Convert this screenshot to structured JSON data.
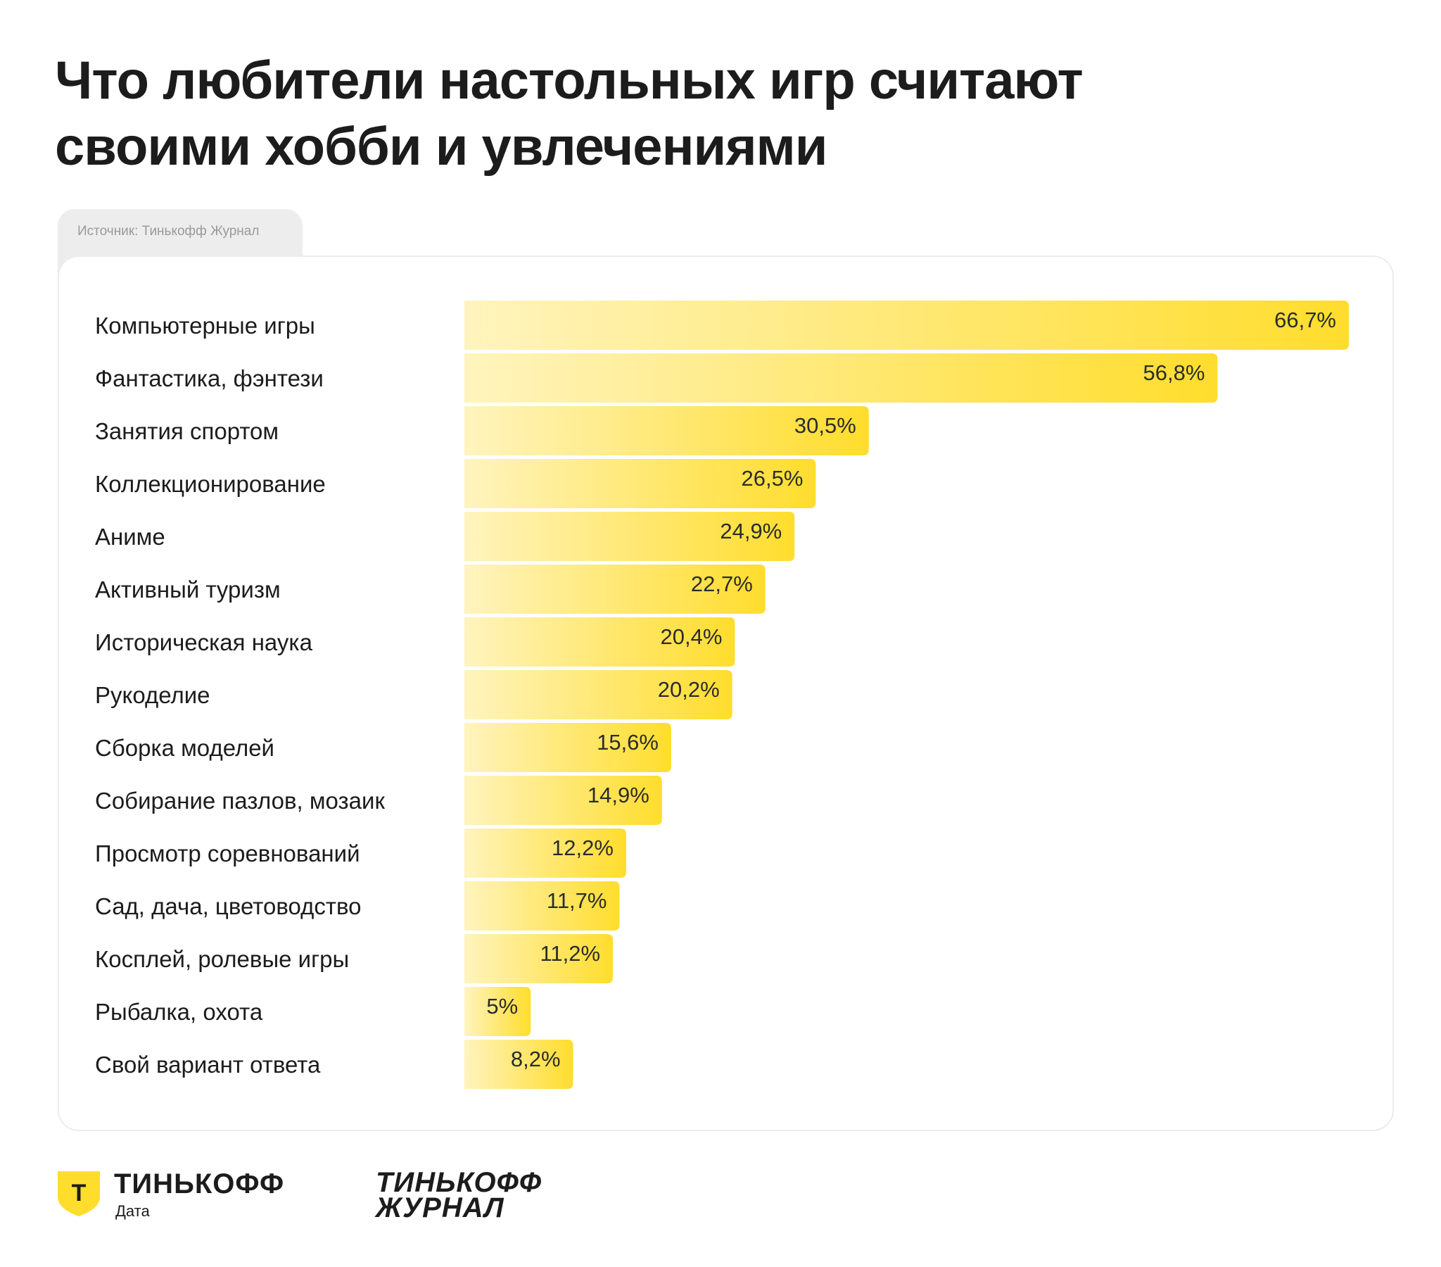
{
  "title_line1": "Что любители настольных игр считают",
  "title_line2": "своими хобби и увлечениями",
  "source": "Источник: Тинькофф Журнал",
  "chart_data": {
    "type": "bar",
    "orientation": "horizontal",
    "categories": [
      "Компьютерные игры",
      "Фантастика, фэнтези",
      "Занятия спортом",
      "Коллекционирование",
      "Аниме",
      "Активный туризм",
      "Историческая наука",
      "Рукоделие",
      "Сборка моделей",
      "Собирание пазлов, мозаик",
      "Просмотр соревнований",
      "Сад, дача, цветоводство",
      "Косплей, ролевые игры",
      "Рыбалка, охота",
      "Свой вариант ответа"
    ],
    "values": [
      66.7,
      56.8,
      30.5,
      26.5,
      24.9,
      22.7,
      20.4,
      20.2,
      15.6,
      14.9,
      12.2,
      11.7,
      11.2,
      5,
      8.2
    ],
    "value_labels": [
      "66,7%",
      "56,8%",
      "30,5%",
      "26,5%",
      "24,9%",
      "22,7%",
      "20,4%",
      "20,2%",
      "15,6%",
      "14,9%",
      "12,2%",
      "11,7%",
      "11,2%",
      "5%",
      "8,2%"
    ],
    "unit": "%",
    "bar_gradient": [
      "#fff4be",
      "#ffdd2d"
    ]
  },
  "logos": {
    "data_brand": "ТИНЬКОФФ",
    "data_sub": "Дата",
    "shield_letter": "Т",
    "journal_line1": "ТИНЬКОФФ",
    "journal_line2": "ЖУРНАЛ"
  }
}
